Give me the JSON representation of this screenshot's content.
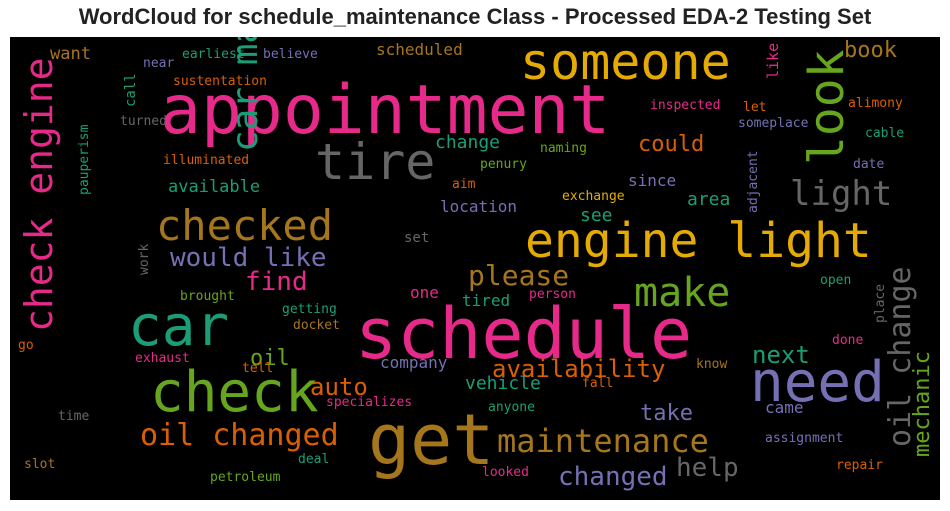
{
  "title": "WordCloud for schedule_maintenance Class - Processed EDA-2 Testing Set",
  "words": [
    {
      "text": "appointment",
      "color": "#e7298a"
    },
    {
      "text": "schedule",
      "color": "#e7298a"
    },
    {
      "text": "get",
      "color": "#a6761d"
    },
    {
      "text": "someone",
      "color": "#e6ab02"
    },
    {
      "text": "engine light",
      "color": "#e6ab02"
    },
    {
      "text": "car",
      "color": "#1b9e77"
    },
    {
      "text": "check",
      "color": "#66a61e"
    },
    {
      "text": "need",
      "color": "#7570b3"
    },
    {
      "text": "tire",
      "color": "#666666"
    },
    {
      "text": "car maintenance",
      "color": "#1b9e77"
    },
    {
      "text": "check engine",
      "color": "#e7298a"
    },
    {
      "text": "checked",
      "color": "#a6761d"
    },
    {
      "text": "look",
      "color": "#66a61e"
    },
    {
      "text": "make",
      "color": "#66a61e"
    },
    {
      "text": "oil change",
      "color": "#666666"
    },
    {
      "text": "maintenance",
      "color": "#a6761d"
    },
    {
      "text": "oil changed",
      "color": "#d95f02"
    },
    {
      "text": "light",
      "color": "#666666"
    },
    {
      "text": "please",
      "color": "#a6761d"
    },
    {
      "text": "find",
      "color": "#e7298a"
    },
    {
      "text": "would like",
      "color": "#7570b3"
    },
    {
      "text": "availability",
      "color": "#d95f02"
    },
    {
      "text": "auto",
      "color": "#d95f02"
    },
    {
      "text": "changed",
      "color": "#7570b3"
    },
    {
      "text": "help",
      "color": "#666666"
    },
    {
      "text": "mechanic",
      "color": "#66a61e"
    },
    {
      "text": "next",
      "color": "#1b9e77"
    },
    {
      "text": "take",
      "color": "#7570b3"
    },
    {
      "text": "oil",
      "color": "#66a61e"
    },
    {
      "text": "could",
      "color": "#d95f02"
    },
    {
      "text": "book",
      "color": "#a6761d"
    },
    {
      "text": "available",
      "color": "#1b9e77"
    },
    {
      "text": "change",
      "color": "#1b9e77"
    },
    {
      "text": "scheduled",
      "color": "#a6761d"
    },
    {
      "text": "want",
      "color": "#a6761d"
    },
    {
      "text": "vehicle",
      "color": "#1b9e77"
    },
    {
      "text": "company",
      "color": "#7570b3"
    },
    {
      "text": "location",
      "color": "#7570b3"
    },
    {
      "text": "see",
      "color": "#1b9e77"
    },
    {
      "text": "area",
      "color": "#1b9e77"
    },
    {
      "text": "since",
      "color": "#7570b3"
    },
    {
      "text": "one",
      "color": "#e7298a"
    },
    {
      "text": "tired",
      "color": "#1b9e77"
    },
    {
      "text": "came",
      "color": "#7570b3"
    },
    {
      "text": "set",
      "color": "#666666"
    },
    {
      "text": "earliest",
      "color": "#1b9e77"
    },
    {
      "text": "believe",
      "color": "#7570b3"
    },
    {
      "text": "near",
      "color": "#7570b3"
    },
    {
      "text": "sustentation",
      "color": "#d95f02"
    },
    {
      "text": "call",
      "color": "#1b9e77"
    },
    {
      "text": "turned",
      "color": "#666666"
    },
    {
      "text": "pauperism",
      "color": "#1b9e77"
    },
    {
      "text": "illuminated",
      "color": "#d95f02"
    },
    {
      "text": "inspected",
      "color": "#e7298a"
    },
    {
      "text": "let",
      "color": "#d95f02"
    },
    {
      "text": "like",
      "color": "#e7298a"
    },
    {
      "text": "alimony",
      "color": "#d95f02"
    },
    {
      "text": "someplace",
      "color": "#7570b3"
    },
    {
      "text": "cable",
      "color": "#1b9e77"
    },
    {
      "text": "date",
      "color": "#7570b3"
    },
    {
      "text": "adjacent",
      "color": "#7570b3"
    },
    {
      "text": "naming",
      "color": "#66a61e"
    },
    {
      "text": "penury",
      "color": "#66a61e"
    },
    {
      "text": "aim",
      "color": "#d95f02"
    },
    {
      "text": "exchange",
      "color": "#e6ab02"
    },
    {
      "text": "work",
      "color": "#666666"
    },
    {
      "text": "brought",
      "color": "#66a61e"
    },
    {
      "text": "getting",
      "color": "#1b9e77"
    },
    {
      "text": "docket",
      "color": "#a6761d"
    },
    {
      "text": "person",
      "color": "#e7298a"
    },
    {
      "text": "open",
      "color": "#1b9e77"
    },
    {
      "text": "place",
      "color": "#666666"
    },
    {
      "text": "go",
      "color": "#d95f02"
    },
    {
      "text": "exhaust",
      "color": "#e7298a"
    },
    {
      "text": "tell",
      "color": "#d95f02"
    },
    {
      "text": "done",
      "color": "#e7298a"
    },
    {
      "text": "know",
      "color": "#a6761d"
    },
    {
      "text": "fall",
      "color": "#d95f02"
    },
    {
      "text": "specializes",
      "color": "#e7298a"
    },
    {
      "text": "time",
      "color": "#666666"
    },
    {
      "text": "anyone",
      "color": "#1b9e77"
    },
    {
      "text": "assignment",
      "color": "#7570b3"
    },
    {
      "text": "slot",
      "color": "#a6761d"
    },
    {
      "text": "deal",
      "color": "#1b9e77"
    },
    {
      "text": "petroleum",
      "color": "#66a61e"
    },
    {
      "text": "looked",
      "color": "#e7298a"
    },
    {
      "text": "repair",
      "color": "#d95f02"
    }
  ]
}
